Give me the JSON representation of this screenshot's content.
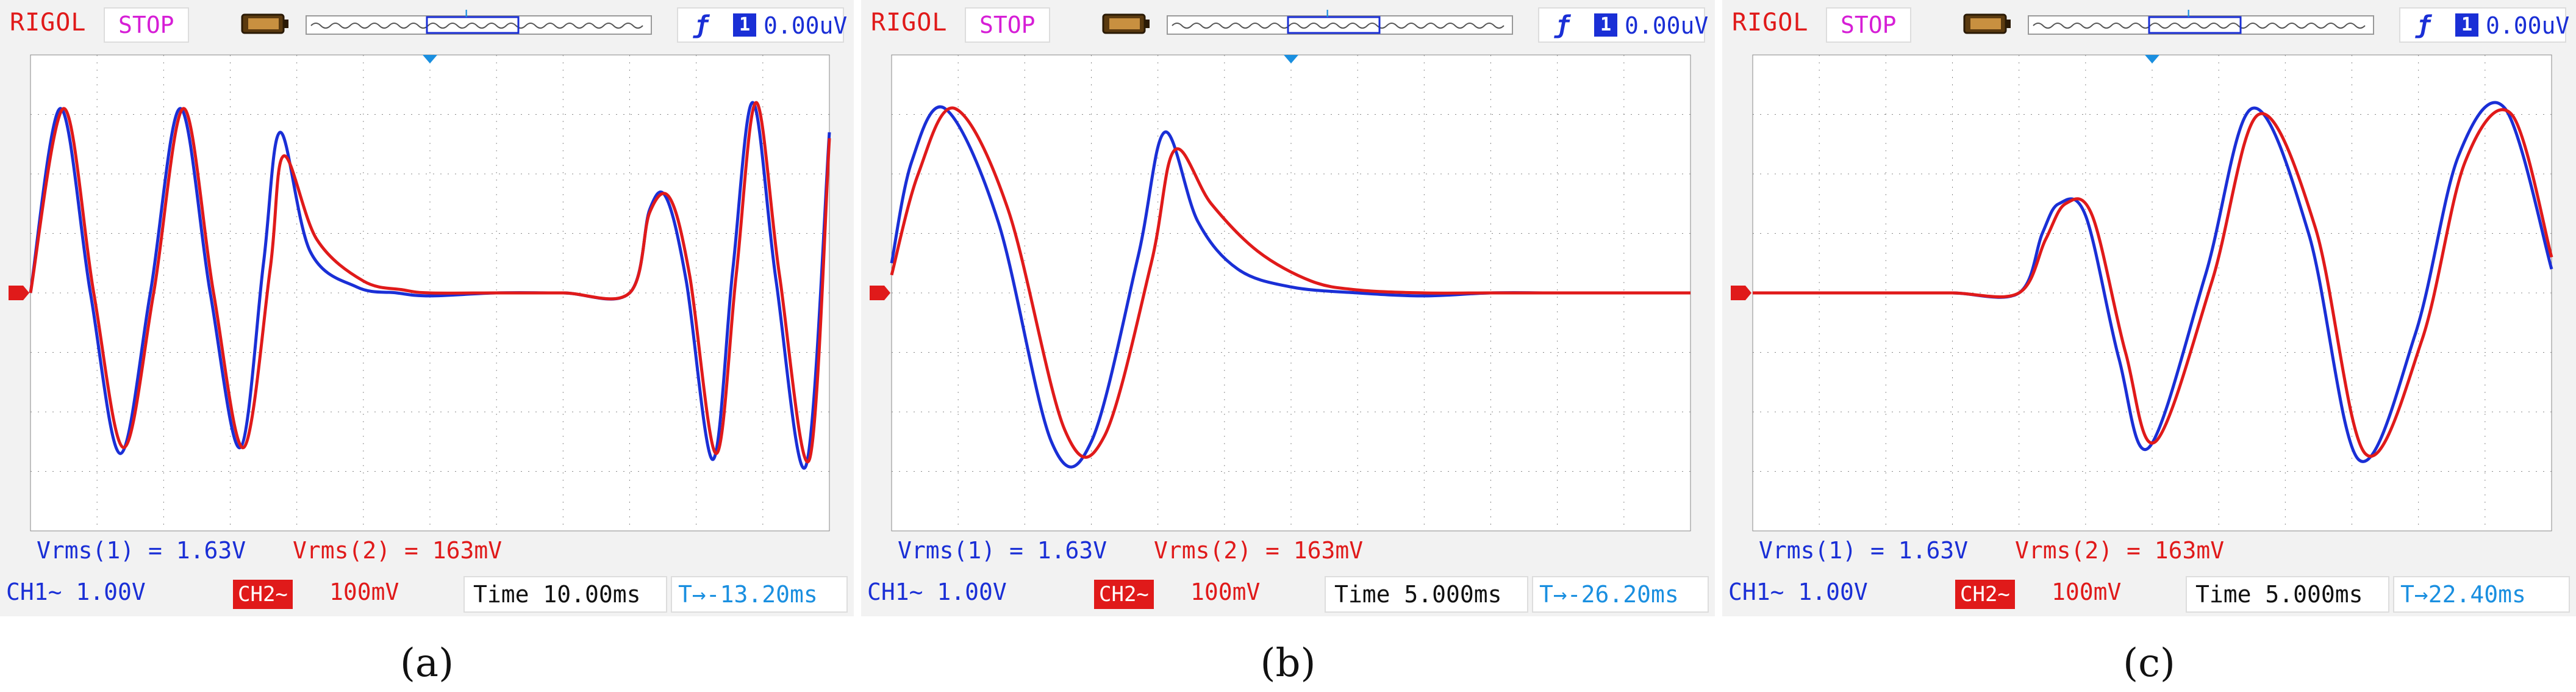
{
  "panels": [
    {
      "label": "(a)",
      "brand": "RIGOL",
      "status": "STOP",
      "trigger": {
        "slope_icon": "rising-edge-icon",
        "source": "1",
        "level": "0.00uV"
      },
      "measurements": {
        "ch1": "Vrms(1) = 1.63V",
        "ch2": "Vrms(2) = 163mV"
      },
      "bottom": {
        "ch1": "CH1~  1.00V",
        "ch2_tag": "CH2~",
        "ch2": "100mV",
        "time": "Time 10.00ms",
        "offset": "T→-13.20ms"
      },
      "chart_data": {
        "type": "line",
        "xlim": [
          0,
          12
        ],
        "ylim": [
          -4,
          4
        ],
        "grid": true,
        "series": [
          {
            "color": "#1a2fd6",
            "x": [
              0,
              0.45,
              0.9,
              1.35,
              1.8,
              2.25,
              2.7,
              3.15,
              3.5,
              3.75,
              4.2,
              4.9,
              5.5,
              6,
              7,
              8,
              9,
              9.3,
              9.55,
              9.85,
              10.25,
              10.55,
              10.85,
              11.2,
              11.65,
              12
            ],
            "y": [
              0,
              3.1,
              0,
              -2.7,
              0,
              3.1,
              0,
              -2.6,
              0.5,
              2.7,
              0.7,
              0.1,
              0,
              -0.05,
              0,
              0,
              0,
              1.4,
              1.6,
              0.2,
              -2.8,
              0.4,
              3.2,
              0.2,
              -2.9,
              2.7
            ]
          },
          {
            "color": "#e01a1a",
            "x": [
              0,
              0.5,
              0.95,
              1.4,
              1.85,
              2.3,
              2.75,
              3.2,
              3.6,
              3.8,
              4.3,
              5,
              5.6,
              6,
              7,
              8,
              9,
              9.3,
              9.6,
              9.9,
              10.3,
              10.6,
              10.9,
              11.25,
              11.7,
              12
            ],
            "y": [
              0,
              3.1,
              0,
              -2.6,
              0,
              3.1,
              0,
              -2.6,
              0.4,
              2.3,
              0.9,
              0.2,
              0.05,
              0,
              0,
              0,
              0,
              1.35,
              1.6,
              0.3,
              -2.7,
              0.3,
              3.2,
              0.3,
              -2.8,
              2.6
            ]
          }
        ]
      }
    },
    {
      "label": "(b)",
      "brand": "RIGOL",
      "status": "STOP",
      "trigger": {
        "slope_icon": "rising-edge-icon",
        "source": "1",
        "level": "0.00uV"
      },
      "measurements": {
        "ch1": "Vrms(1) = 1.63V",
        "ch2": "Vrms(2) = 163mV"
      },
      "bottom": {
        "ch1": "CH1~  1.00V",
        "ch2_tag": "CH2~",
        "ch2": "100mV",
        "time": "Time 5.000ms",
        "offset": "T→-26.20ms"
      },
      "chart_data": {
        "type": "line",
        "xlim": [
          0,
          12
        ],
        "ylim": [
          -4,
          4
        ],
        "grid": true,
        "series": [
          {
            "color": "#1a2fd6",
            "x": [
              0,
              0.3,
              0.8,
              1.6,
              2.4,
              3.0,
              3.7,
              4.1,
              4.6,
              5.2,
              6,
              7,
              8,
              9,
              10,
              11,
              12
            ],
            "y": [
              0.5,
              2.2,
              3.1,
              1.2,
              -2.5,
              -2.5,
              0.6,
              2.7,
              1.2,
              0.4,
              0.1,
              0,
              -0.05,
              0,
              0,
              0,
              0
            ]
          },
          {
            "color": "#e01a1a",
            "x": [
              0,
              0.4,
              0.95,
              1.75,
              2.6,
              3.2,
              3.9,
              4.25,
              4.8,
              5.5,
              6.3,
              7,
              8,
              9,
              10,
              11,
              12
            ],
            "y": [
              0.3,
              2.0,
              3.1,
              1.4,
              -2.3,
              -2.4,
              0.5,
              2.4,
              1.5,
              0.7,
              0.2,
              0.05,
              0,
              0,
              0,
              0,
              0
            ]
          }
        ]
      }
    },
    {
      "label": "(c)",
      "brand": "RIGOL",
      "status": "STOP",
      "trigger": {
        "slope_icon": "rising-edge-icon",
        "source": "1",
        "level": "0.00uV"
      },
      "measurements": {
        "ch1": "Vrms(1) = 1.63V",
        "ch2": "Vrms(2) = 163mV"
      },
      "bottom": {
        "ch1": "CH1~  1.00V",
        "ch2_tag": "CH2~",
        "ch2": "100mV",
        "time": "Time 5.000ms",
        "offset": "T→22.40ms"
      },
      "chart_data": {
        "type": "line",
        "xlim": [
          0,
          12
        ],
        "ylim": [
          -4,
          4
        ],
        "grid": true,
        "series": [
          {
            "color": "#1a2fd6",
            "x": [
              0,
              1,
              2,
              3,
              4,
              4.35,
              4.6,
              5.0,
              5.5,
              5.95,
              6.8,
              7.5,
              8.35,
              9.1,
              9.95,
              10.6,
              11.3,
              12
            ],
            "y": [
              0,
              0,
              0,
              0,
              0,
              1.0,
              1.5,
              1.3,
              -1.1,
              -2.6,
              0.3,
              3.1,
              1.0,
              -2.8,
              -0.7,
              2.3,
              3.1,
              0.4
            ]
          },
          {
            "color": "#e01a1a",
            "x": [
              0,
              1,
              2,
              3,
              4,
              4.4,
              4.7,
              5.1,
              5.6,
              6.05,
              6.9,
              7.6,
              8.45,
              9.2,
              10.05,
              10.7,
              11.4,
              12
            ],
            "y": [
              0,
              0,
              0,
              0,
              0,
              0.9,
              1.5,
              1.3,
              -1.0,
              -2.5,
              0.2,
              3.0,
              1.1,
              -2.7,
              -0.8,
              2.2,
              3.0,
              0.6
            ]
          }
        ]
      }
    }
  ]
}
